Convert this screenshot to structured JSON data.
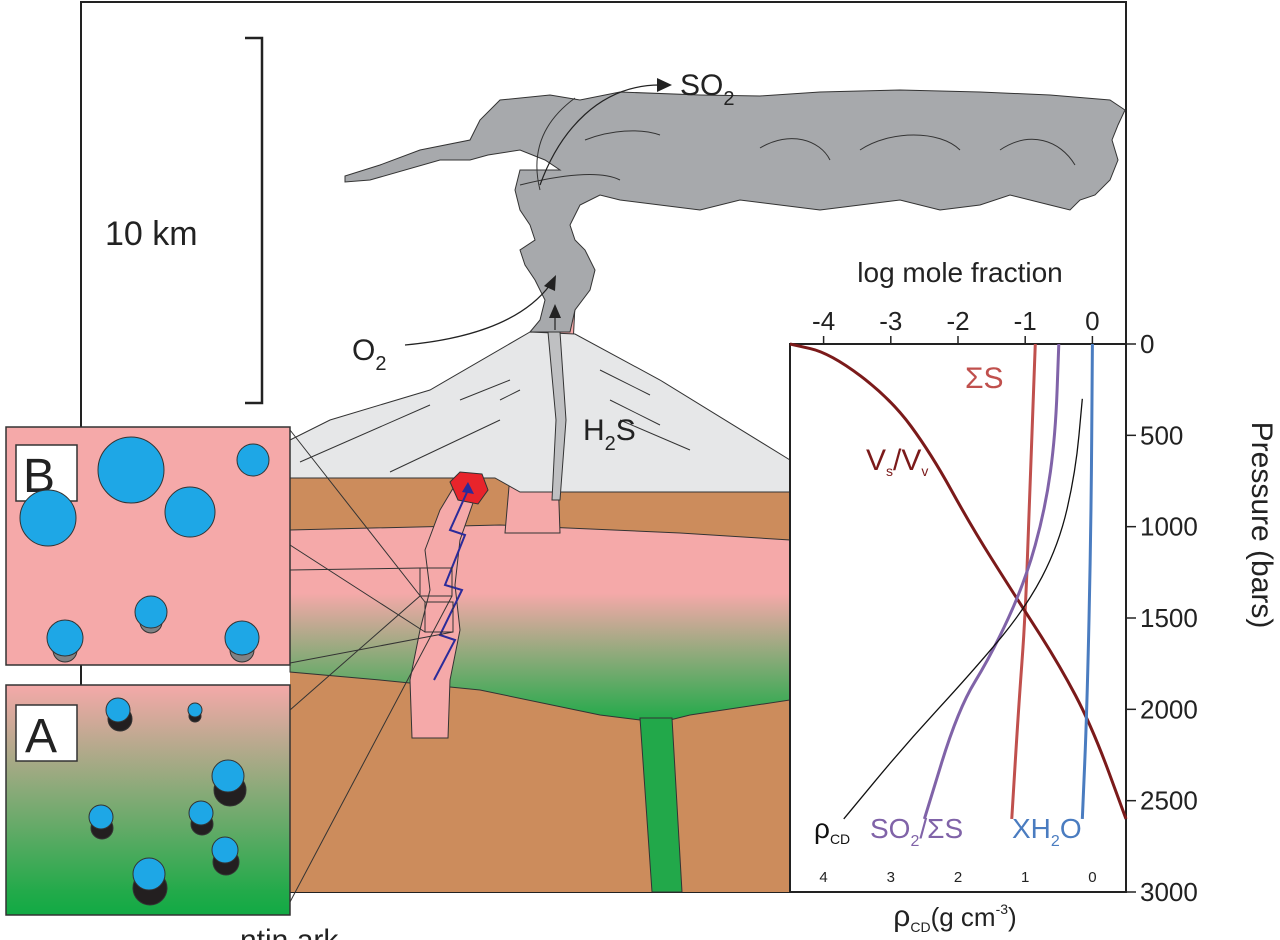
{
  "scale_bar": {
    "label": "10 km"
  },
  "labels": {
    "so2": "SO",
    "so2_sub": "2",
    "o2": "O",
    "o2_sub": "2",
    "h2s_a": "H",
    "h2s_sub": "2",
    "h2s_b": "S",
    "inset_b": "B",
    "inset_a": "A",
    "bottom_cut": "ntin   ark"
  },
  "chart_data": {
    "type": "line",
    "top_axis": {
      "label": "log mole fraction",
      "ticks": [
        "-4",
        "-3",
        "-2",
        "-1",
        "0"
      ],
      "range": [
        -4.5,
        0.5
      ]
    },
    "right_axis": {
      "label": "Pressure (bars)",
      "ticks": [
        "0",
        "500",
        "1000",
        "1500",
        "2000",
        "2500",
        "3000"
      ],
      "range": [
        0,
        3000
      ]
    },
    "bottom_axis": {
      "label_main": "ρ",
      "label_sub": "CD",
      "label_unit": "(g cm",
      "label_sup": "-3",
      "label_close": ")",
      "ticks": [
        "4",
        "3",
        "2",
        "1",
        "0"
      ]
    },
    "series": [
      {
        "name_main": "ΣS",
        "color": "#c0504d",
        "points": [
          [
            -0.85,
            0
          ],
          [
            -0.9,
            500
          ],
          [
            -0.95,
            1000
          ],
          [
            -1.0,
            1500
          ],
          [
            -1.1,
            2000
          ],
          [
            -1.2,
            2600
          ]
        ]
      },
      {
        "name_main": "V",
        "name_sub1": "s",
        "name_mid": "/V",
        "name_sub2": "v",
        "color": "#7b1a1a",
        "points": [
          [
            -4.5,
            0
          ],
          [
            -3.9,
            50
          ],
          [
            -3.0,
            300
          ],
          [
            -2.4,
            600
          ],
          [
            -1.8,
            1000
          ],
          [
            -1.2,
            1350
          ],
          [
            -0.5,
            1750
          ],
          [
            0.0,
            2100
          ],
          [
            0.5,
            2600
          ]
        ]
      },
      {
        "name_main": "SO",
        "name_sub1": "2",
        "name_mid": "/ΣS",
        "color": "#8063a8",
        "points": [
          [
            -0.5,
            0
          ],
          [
            -0.55,
            500
          ],
          [
            -0.7,
            900
          ],
          [
            -1.0,
            1300
          ],
          [
            -1.5,
            1700
          ],
          [
            -2.0,
            2000
          ],
          [
            -2.5,
            2600
          ]
        ]
      },
      {
        "name_main": "XH",
        "name_sub1": "2",
        "name_mid": "O",
        "color": "#4a7cc0",
        "points": [
          [
            0.0,
            0
          ],
          [
            -0.02,
            1000
          ],
          [
            -0.08,
            2000
          ],
          [
            -0.15,
            2600
          ]
        ]
      },
      {
        "name_main": "ρ",
        "name_sub1": "CD",
        "color": "#111111",
        "points": [
          [
            -0.15,
            300
          ],
          [
            -0.25,
            700
          ],
          [
            -0.5,
            1100
          ],
          [
            -1.0,
            1450
          ],
          [
            -1.8,
            1800
          ],
          [
            -2.8,
            2200
          ],
          [
            -3.7,
            2600
          ]
        ]
      }
    ]
  }
}
